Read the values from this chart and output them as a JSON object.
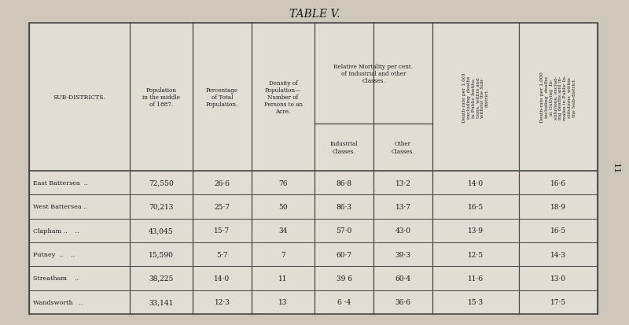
{
  "title": "TABLE V.",
  "bg_color": "#cec8bb",
  "table_bg": "#e2ddd3",
  "border_color": "#444444",
  "rows": [
    [
      "East Battersea  ..",
      "72,550",
      "26·6",
      "76",
      "86·8",
      "13·2",
      "14·0",
      "16·6"
    ],
    [
      "West Battersea ..",
      "70,213",
      "25·7",
      "50",
      "86·3",
      "13·7",
      "16·5",
      "18·9"
    ],
    [
      "Clapham ..    ..",
      "43,045",
      "15·7",
      "34",
      "57·0",
      "43·0",
      "13·9",
      "16·5"
    ],
    [
      "Putney  ..    ..",
      "15,590",
      "5·7",
      "7",
      "60·7",
      "39·3",
      "12·5",
      "14·3"
    ],
    [
      "Streatham    ..",
      "38,225",
      "14·0",
      "11",
      "39 6",
      "60·4",
      "11·6",
      "13·0"
    ],
    [
      "Wandsworth   ..",
      "33,141",
      "12·3",
      "13",
      "6 ·4",
      "36·6",
      "15·3",
      "17·5"
    ]
  ],
  "col0_header": "SUB-DISTRICTS.",
  "col1_header": "Population\nin the middle\nof 1887.",
  "col2_header": "Percentage\nof Total\nPopulation.",
  "col3_header": "Density of\nPopulation—\nNumber of\nPersons to an\nAcre.",
  "rel_mort_header": "Relative Mortality per cent.\nof Industrial and other\nClasses.",
  "col4_header": "Industrial\nClasses.",
  "col5_header": "Other\nClasses.",
  "col6_header": "Death-rate per 1,0(0\nexcluding  deaths\nin Public Institu-\ntions, within and\nwithout the Sub-\ndistrict.",
  "col7_header": "Death-rate per 1,000\nincluding  deaths\nin Outlying  In-\nstitutions, exclud-\ning deaths and in-\nmates in Public In-\nstitutions  within\nthe Sub-district.",
  "page_number": "11",
  "text_color": "#1a1a1a"
}
